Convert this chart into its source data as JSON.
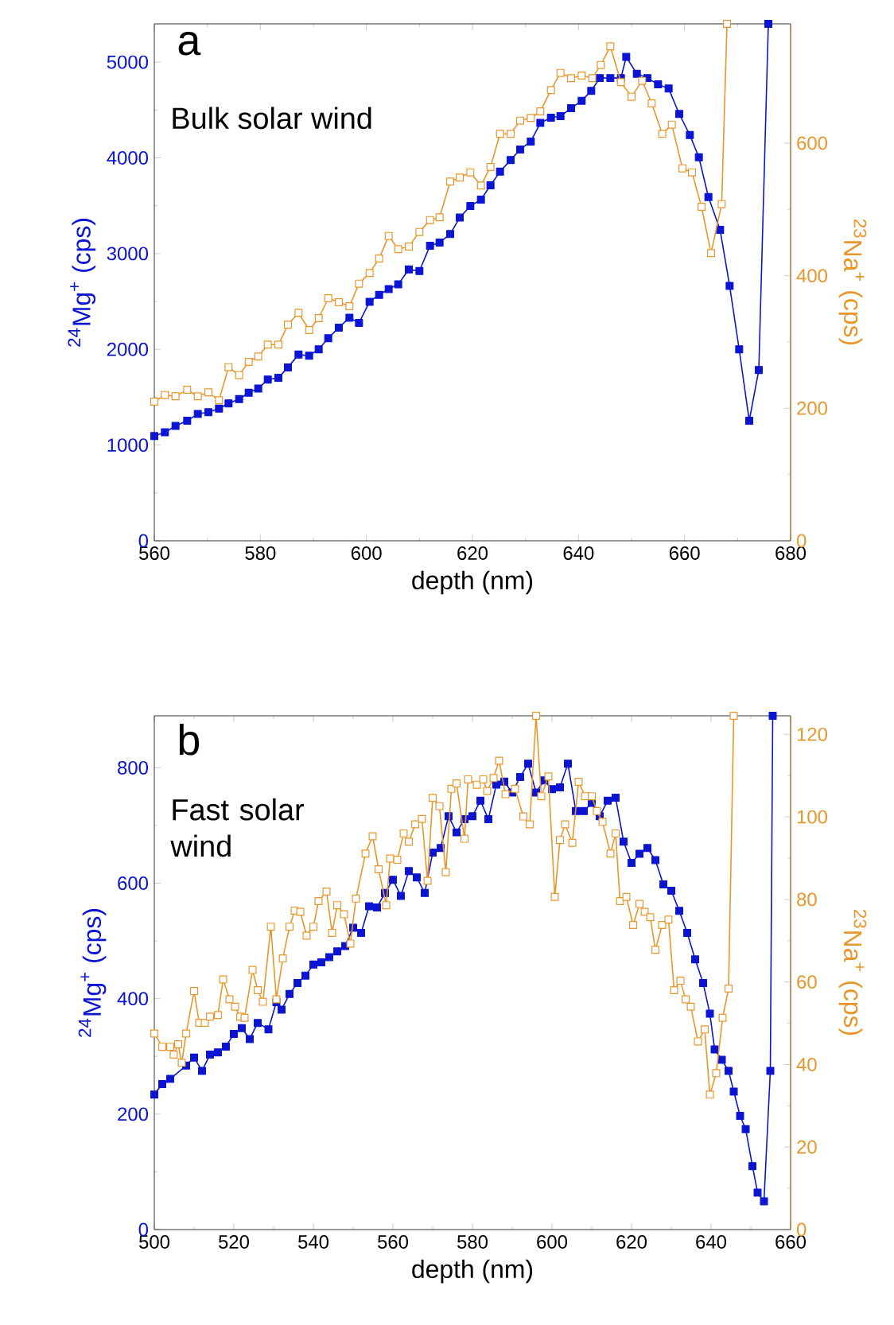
{
  "chart_data": [
    {
      "type": "line",
      "title": "a",
      "annotations": [
        "Bulk solar wind"
      ],
      "xlabel": "depth (nm)",
      "ylabel": "$^{24}$Mg$^{+}$ (cps)",
      "y2label": "$^{23}$Na$^{+}$ (cps)",
      "marker": "square",
      "line_style": "solid",
      "xlim": [
        560,
        680
      ],
      "xticks": [
        560,
        580,
        600,
        620,
        640,
        660,
        680
      ],
      "ylim": [
        0,
        5400
      ],
      "yticks": [
        0,
        1000,
        2000,
        3000,
        4000,
        5000
      ],
      "y2lim": [
        0,
        780
      ],
      "y2ticks": [
        0,
        200,
        400,
        600
      ],
      "series": [
        {
          "color": "#0a14d2",
          "x": [
            560.0,
            562.0,
            564.0,
            566.2,
            568.2,
            570.2,
            572.2,
            574.0,
            576.0,
            577.8,
            579.6,
            581.4,
            583.4,
            585.2,
            587.2,
            589.2,
            591.0,
            592.8,
            594.8,
            596.8,
            598.6,
            600.6,
            602.4,
            604.2,
            606.0,
            608.0,
            610.0,
            612.0,
            613.8,
            615.8,
            617.6,
            619.6,
            621.6,
            623.4,
            625.2,
            627.2,
            629.0,
            631.0,
            632.8,
            634.8,
            636.6,
            638.6,
            640.6,
            642.4,
            644.0,
            646.0,
            648.0,
            649.0,
            651.0,
            653.0,
            655.0,
            657.0,
            659.0,
            661.0,
            662.7,
            664.5,
            666.7,
            668.5,
            670.3,
            672.2,
            674.0,
            675.8
          ],
          "values": [
            1094,
            1133,
            1200,
            1254,
            1326,
            1343,
            1381,
            1436,
            1480,
            1547,
            1591,
            1685,
            1702,
            1812,
            1945,
            1934,
            2000,
            2116,
            2227,
            2331,
            2276,
            2497,
            2569,
            2630,
            2680,
            2834,
            2818,
            3083,
            3116,
            3204,
            3376,
            3497,
            3564,
            3713,
            3856,
            3978,
            4088,
            4171,
            4365,
            4420,
            4436,
            4519,
            4597,
            4700,
            4834,
            4834,
            4834,
            5055,
            4878,
            4834,
            4768,
            4724,
            4459,
            4238,
            4006,
            3591,
            3249,
            2663,
            2000,
            1254,
            1785,
            5400
          ]
        },
        {
          "color": "#e8962a",
          "axis": "y2",
          "x": [
            560.0,
            562.0,
            564.0,
            566.2,
            568.2,
            570.2,
            572.2,
            574.0,
            576.0,
            577.8,
            579.6,
            581.4,
            583.4,
            585.2,
            587.2,
            589.2,
            591.0,
            592.8,
            594.8,
            596.8,
            598.6,
            600.6,
            602.4,
            604.2,
            606.0,
            608.0,
            610.0,
            612.0,
            613.8,
            615.8,
            617.6,
            619.6,
            621.6,
            623.4,
            625.2,
            627.2,
            629.0,
            631.0,
            632.8,
            634.8,
            636.6,
            638.6,
            640.6,
            642.6,
            644.2,
            646.0,
            648.0,
            650.0,
            652.0,
            653.8,
            655.8,
            657.6,
            659.6,
            661.4,
            663.2,
            665.0,
            667.0,
            668.0
          ],
          "values": [
            210,
            220,
            218,
            228,
            218,
            224,
            212,
            262,
            250,
            270,
            278,
            296,
            296,
            326,
            344,
            318,
            336,
            366,
            360,
            354,
            388,
            404,
            426,
            460,
            440,
            444,
            466,
            484,
            488,
            542,
            548,
            556,
            536,
            564,
            614,
            614,
            634,
            638,
            648,
            680,
            706,
            698,
            702,
            698,
            718,
            746,
            692,
            670,
            694,
            660,
            614,
            628,
            562,
            556,
            504,
            434,
            508,
            780
          ]
        }
      ]
    },
    {
      "type": "line",
      "title": "b",
      "annotations": [
        "Fast solar wind"
      ],
      "xlabel": "depth (nm)",
      "ylabel": "$^{24}$Mg$^{+}$ (cps)",
      "y2label": "$^{23}$Na$^{+}$ (cps)",
      "marker": "square",
      "line_style": "solid",
      "xlim": [
        500,
        660
      ],
      "xticks": [
        500,
        520,
        540,
        560,
        580,
        600,
        620,
        640,
        660
      ],
      "ylim": [
        0,
        890
      ],
      "yticks": [
        0,
        200,
        400,
        600,
        800
      ],
      "y2lim": [
        0,
        124.5
      ],
      "y2ticks": [
        0,
        20,
        40,
        60,
        80,
        100,
        120
      ],
      "series": [
        {
          "color": "#0a14d2",
          "x": [
            500.0,
            502.0,
            504.0,
            508.0,
            510.0,
            512.0,
            514.0,
            516.0,
            518.0,
            520.0,
            522.0,
            524.0,
            526.0,
            528.7,
            530.7,
            532.0,
            534.0,
            536.0,
            538.0,
            540.0,
            542.0,
            544.0,
            546.0,
            548.0,
            550.0,
            552.0,
            554.0,
            556.0,
            558.0,
            560.0,
            562.0,
            564.0,
            566.0,
            568.0,
            570.0,
            572.0,
            574.0,
            576.0,
            578.0,
            580.0,
            582.0,
            584.0,
            586.0,
            588.0,
            590.0,
            592.0,
            594.0,
            596.0,
            598.0,
            600.0,
            602.0,
            604.0,
            606.0,
            608.0,
            610.0,
            612.0,
            614.0,
            616.0,
            618.0,
            620.0,
            622.0,
            624.0,
            626.0,
            628.0,
            630.0,
            632.0,
            634.0,
            636.0,
            638.0,
            639.7,
            640.9,
            642.7,
            644.4,
            645.7,
            647.3,
            648.7,
            650.4,
            651.7,
            653.3,
            654.9,
            655.5
          ],
          "values": [
            234,
            252,
            261,
            284,
            298,
            275,
            303,
            307,
            317,
            339,
            349,
            330,
            358,
            347,
            394,
            381,
            408,
            427,
            440,
            459,
            463,
            472,
            482,
            491,
            523,
            514,
            560,
            558,
            583,
            606,
            578,
            621,
            610,
            583,
            653,
            661,
            716,
            688,
            711,
            716,
            743,
            711,
            771,
            776,
            757,
            784,
            807,
            757,
            778,
            763,
            766,
            807,
            725,
            725,
            739,
            716,
            743,
            748,
            672,
            635,
            651,
            661,
            640,
            598,
            587,
            552,
            514,
            468,
            427,
            374,
            312,
            294,
            275,
            239,
            197,
            174,
            110,
            64,
            49,
            275,
            890
          ]
        },
        {
          "color": "#e8962a",
          "axis": "y2",
          "x": [
            500.0,
            502.0,
            504.0,
            504.9,
            506.0,
            506.9,
            508.0,
            510.0,
            511.3,
            512.7,
            514.0,
            516.0,
            517.3,
            518.9,
            520.3,
            521.6,
            522.7,
            524.7,
            526.0,
            527.3,
            529.3,
            530.7,
            532.3,
            534.0,
            535.3,
            536.7,
            538.3,
            540.0,
            541.3,
            543.3,
            544.7,
            546.0,
            547.7,
            549.3,
            550.7,
            553.1,
            554.9,
            556.4,
            558.3,
            559.3,
            561.1,
            562.7,
            564.0,
            565.6,
            567.3,
            568.7,
            570.0,
            571.7,
            573.3,
            574.7,
            576.0,
            578.0,
            578.9,
            581.1,
            582.7,
            583.7,
            585.3,
            586.7,
            588.3,
            590.7,
            592.8,
            594.4,
            596.0,
            597.3,
            599.1,
            600.7,
            602.0,
            603.3,
            605.1,
            606.7,
            608.3,
            610.0,
            611.3,
            612.7,
            614.7,
            616.0,
            617.1,
            618.7,
            620.4,
            622.0,
            623.3,
            624.7,
            626.0,
            627.7,
            629.3,
            630.7,
            632.3,
            633.6,
            634.9,
            636.7,
            638.4,
            639.7,
            641.3,
            642.9,
            644.4,
            645.7
          ],
          "values": [
            47.5,
            44.3,
            44.3,
            42.4,
            44.9,
            40.4,
            47.5,
            57.8,
            50.1,
            50.1,
            51.6,
            52.0,
            60.6,
            55.8,
            54.0,
            51.6,
            51.3,
            62.9,
            58.0,
            55.2,
            73.4,
            55.8,
            65.7,
            73.4,
            77.3,
            77.0,
            71.2,
            73.4,
            79.6,
            81.9,
            71.9,
            78.6,
            76.4,
            69.3,
            80.2,
            91.1,
            95.3,
            87.3,
            78.6,
            89.9,
            89.6,
            96.0,
            94.0,
            98.2,
            99.5,
            84.5,
            104.6,
            102.6,
            86.6,
            106.8,
            108.1,
            94.7,
            109.1,
            107.8,
            109.1,
            106.3,
            109.4,
            113.6,
            105.5,
            106.8,
            100.1,
            98.2,
            124.5,
            105.0,
            109.8,
            80.6,
            94.4,
            98.2,
            93.7,
            108.5,
            105.0,
            105.0,
            101.4,
            98.8,
            91.1,
            96.0,
            79.6,
            80.6,
            73.8,
            78.9,
            77.0,
            75.7,
            67.8,
            73.8,
            75.1,
            58.0,
            60.3,
            55.8,
            54.0,
            45.6,
            48.5,
            32.7,
            37.9,
            51.3,
            58.4,
            124.5
          ]
        }
      ]
    }
  ]
}
